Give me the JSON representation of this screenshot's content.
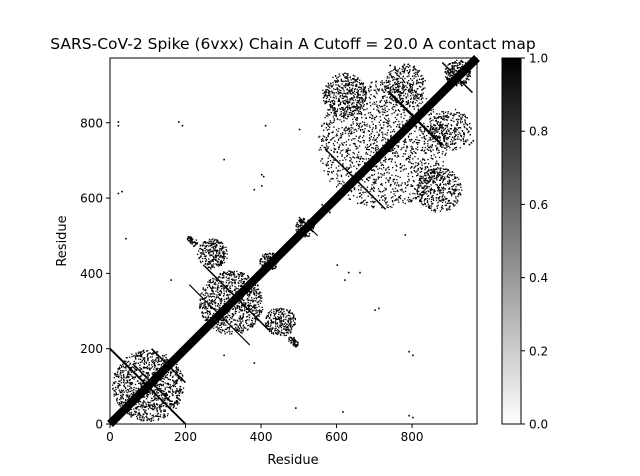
{
  "chart_data": {
    "type": "heatmap",
    "title": "SARS-CoV-2 Spike (6vxx) Chain A Cutoff = 20.0 A contact map",
    "xlabel": "Residue",
    "ylabel": "Residue",
    "n_residues": 972,
    "xlim": [
      0,
      972
    ],
    "ylim": [
      0,
      972
    ],
    "x_ticks": [
      0,
      200,
      400,
      600,
      800
    ],
    "y_ticks": [
      0,
      200,
      400,
      600,
      800
    ],
    "colorbar": {
      "range": [
        0.0,
        1.0
      ],
      "ticks": [
        "0.0",
        "0.2",
        "0.4",
        "0.6",
        "0.8",
        "1.0"
      ],
      "colormap": "Greys",
      "low_color": "#ffffff",
      "high_color": "#000000"
    },
    "contact_segments": [
      {
        "from": [
          0,
          0
        ],
        "to": [
          972,
          972
        ],
        "width": 22
      },
      {
        "from": [
          0,
          200
        ],
        "to": [
          200,
          0
        ],
        "width": 5
      },
      {
        "from": [
          60,
          160
        ],
        "to": [
          160,
          60
        ],
        "width": 4
      },
      {
        "from": [
          110,
          200
        ],
        "to": [
          200,
          110
        ],
        "width": 4
      },
      {
        "from": [
          250,
          420
        ],
        "to": [
          420,
          250
        ],
        "width": 4
      },
      {
        "from": [
          210,
          370
        ],
        "to": [
          370,
          210
        ],
        "width": 3
      },
      {
        "from": [
          570,
          730
        ],
        "to": [
          730,
          570
        ],
        "width": 4
      },
      {
        "from": [
          740,
          880
        ],
        "to": [
          880,
          740
        ],
        "width": 6
      },
      {
        "from": [
          880,
          960
        ],
        "to": [
          960,
          880
        ],
        "width": 4
      },
      {
        "from": [
          500,
          550
        ],
        "to": [
          550,
          500
        ],
        "width": 3
      }
    ],
    "contact_clusters": [
      {
        "center": [
          100,
          100
        ],
        "radius": 95,
        "count": 1100
      },
      {
        "center": [
          320,
          320
        ],
        "radius": 85,
        "count": 900
      },
      {
        "center": [
          270,
          450
        ],
        "radius": 40,
        "count": 260
      },
      {
        "center": [
          450,
          270
        ],
        "radius": 40,
        "count": 260
      },
      {
        "center": [
          420,
          430
        ],
        "radius": 25,
        "count": 140
      },
      {
        "center": [
          515,
          520
        ],
        "radius": 25,
        "count": 160
      },
      {
        "center": [
          720,
          740
        ],
        "radius": 170,
        "count": 1600
      },
      {
        "center": [
          920,
          930
        ],
        "radius": 35,
        "count": 240
      },
      {
        "center": [
          620,
          870
        ],
        "radius": 60,
        "count": 420
      },
      {
        "center": [
          870,
          620
        ],
        "radius": 60,
        "count": 420
      },
      {
        "center": [
          780,
          900
        ],
        "radius": 55,
        "count": 300
      },
      {
        "center": [
          900,
          780
        ],
        "radius": 55,
        "count": 300
      },
      {
        "center": [
          220,
          480
        ],
        "radius": 10,
        "count": 30
      },
      {
        "center": [
          480,
          220
        ],
        "radius": 10,
        "count": 30
      },
      {
        "center": [
          490,
          210
        ],
        "radius": 8,
        "count": 25
      },
      {
        "center": [
          210,
          490
        ],
        "radius": 8,
        "count": 25
      }
    ],
    "sparse_contacts": [
      [
        20,
        790
      ],
      [
        20,
        800
      ],
      [
        190,
        790
      ],
      [
        180,
        800
      ],
      [
        400,
        660
      ],
      [
        405,
        655
      ],
      [
        20,
        610
      ],
      [
        30,
        615
      ],
      [
        40,
        490
      ],
      [
        410,
        790
      ],
      [
        380,
        160
      ],
      [
        500,
        780
      ],
      [
        950,
        740
      ],
      [
        955,
        745
      ],
      [
        960,
        750
      ],
      [
        560,
        580
      ],
      [
        700,
        300
      ],
      [
        710,
        305
      ],
      [
        620,
        380
      ],
      [
        400,
        630
      ],
      [
        790,
        20
      ],
      [
        800,
        15
      ],
      [
        790,
        190
      ],
      [
        800,
        180
      ],
      [
        660,
        400
      ],
      [
        615,
        30
      ],
      [
        490,
        40
      ],
      [
        160,
        380
      ],
      [
        780,
        500
      ],
      [
        580,
        560
      ],
      [
        300,
        700
      ],
      [
        380,
        620
      ],
      [
        740,
        950
      ],
      [
        630,
        400
      ],
      [
        600,
        420
      ],
      [
        300,
        180
      ]
    ]
  }
}
